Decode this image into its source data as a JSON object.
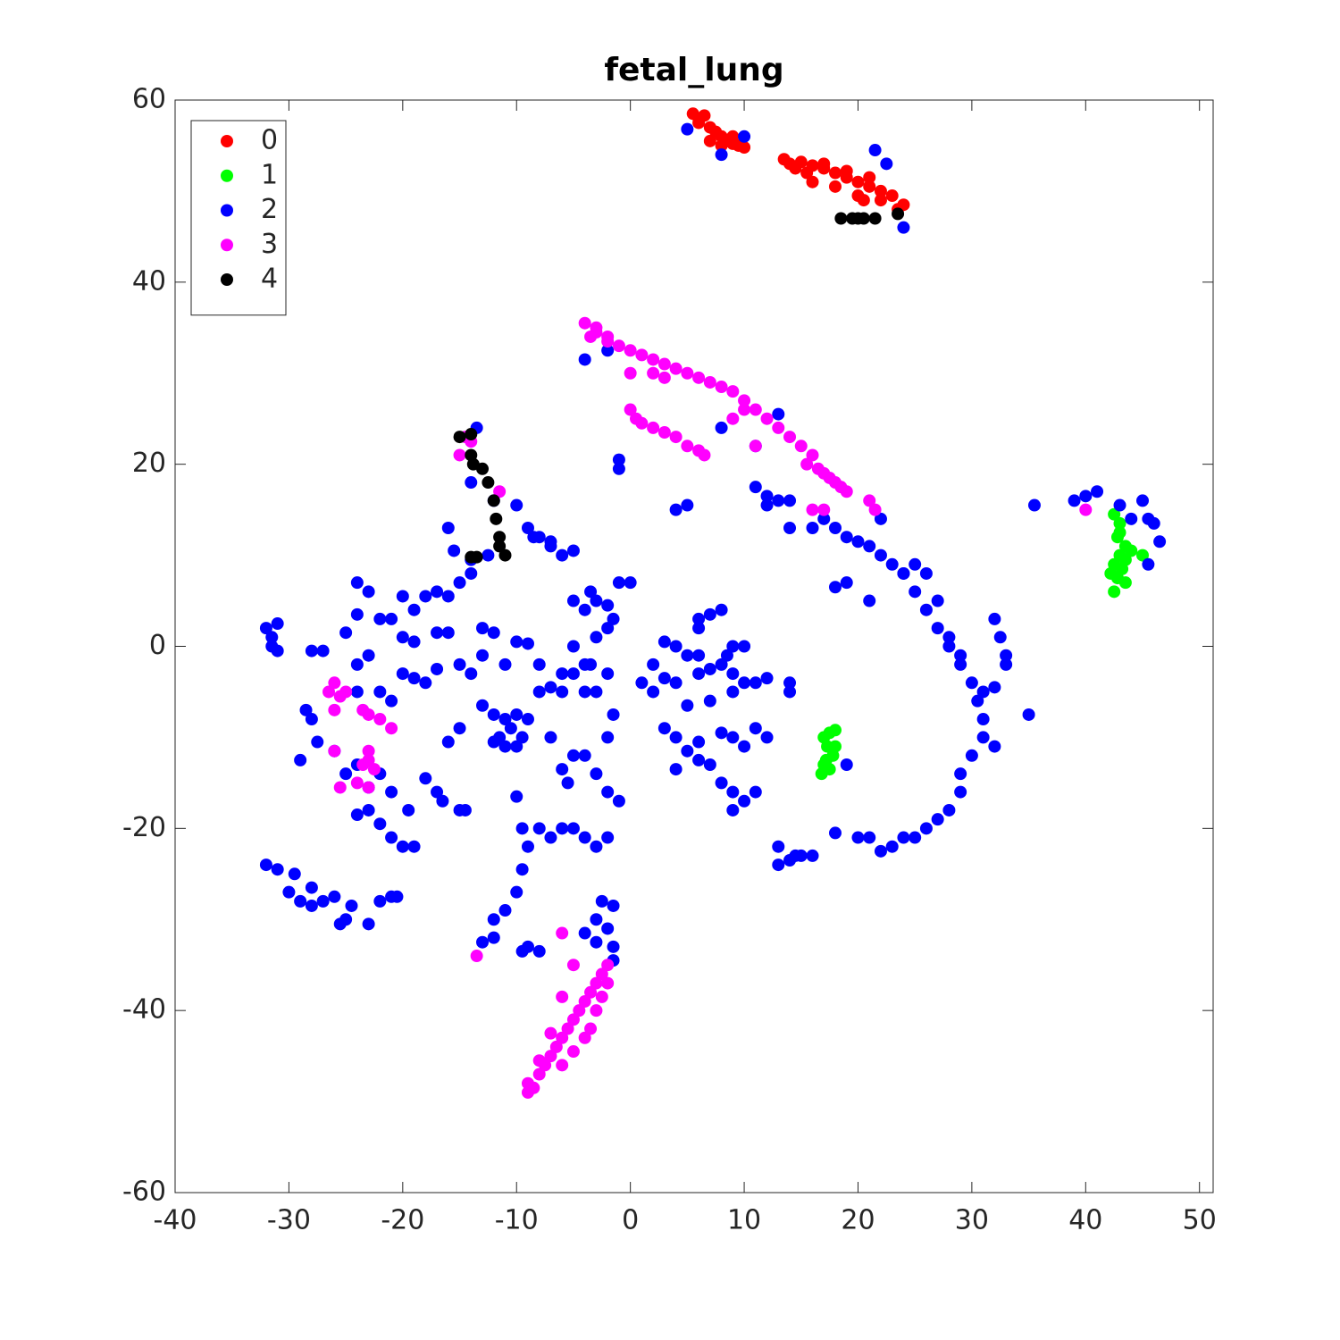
{
  "chart_data": {
    "type": "scatter",
    "title": "fetal_lung",
    "xlim": [
      -40,
      51.2
    ],
    "xticks": [
      -40,
      -30,
      -20,
      -10,
      0,
      10,
      20,
      30,
      40,
      50
    ],
    "ylim": [
      -60,
      60
    ],
    "yticks": [
      -60,
      -40,
      -20,
      0,
      20,
      40,
      60
    ],
    "grid": false,
    "legend": "upper left",
    "series": [
      {
        "name": "0",
        "color": "#ff0000",
        "x": [
          5.5,
          6,
          6.5,
          7,
          7.5,
          8,
          8.5,
          9,
          9.5,
          10,
          7,
          8,
          13.5,
          14,
          15,
          16,
          17,
          18,
          19,
          20,
          21,
          22,
          23,
          24,
          14.5,
          16,
          18,
          20,
          22,
          23.5,
          17,
          19,
          21,
          15.5,
          20.5,
          6,
          9
        ],
        "values": [
          58.5,
          58,
          58.3,
          57,
          56.5,
          56,
          55.5,
          56,
          55,
          54.8,
          55.5,
          55,
          53.5,
          53,
          53.2,
          52.8,
          52.5,
          52,
          51.5,
          51,
          50.5,
          50,
          49.5,
          48.5,
          52.5,
          51,
          50.5,
          49.5,
          49,
          48,
          53,
          52.2,
          51.5,
          52,
          49,
          57.5,
          55.2
        ]
      },
      {
        "name": "1",
        "color": "#00ff00",
        "x": [
          42.5,
          43,
          42.8,
          43.5,
          43,
          42.5,
          43.2,
          42.8,
          42.5,
          43.5,
          44,
          45,
          42.2,
          43,
          43.5,
          17,
          17.5,
          18,
          17.3,
          17.8,
          17,
          16.8,
          17.5,
          18,
          17.2
        ],
        "values": [
          14.5,
          13.5,
          12,
          11,
          10,
          9,
          8.5,
          7.5,
          6,
          9.5,
          10.5,
          10,
          8,
          12.5,
          7,
          -10,
          -9.5,
          -9.2,
          -11,
          -12,
          -13,
          -14,
          -13.5,
          -11,
          -12.5
        ]
      },
      {
        "name": "2",
        "color": "#0000ff",
        "x": [
          5,
          8,
          10,
          21.5,
          22.5,
          24,
          -32,
          -31.5,
          -31,
          -31.5,
          -28,
          -27,
          -24,
          -23,
          -24,
          -22,
          -21,
          -20,
          -19,
          -18,
          -17,
          -16,
          -15,
          -14,
          -15.5,
          -14,
          -13.5,
          -14,
          -12,
          -10,
          -9,
          -8,
          -7,
          -6,
          -5,
          -8.5,
          -7,
          -20,
          -19,
          -17,
          -16,
          -13,
          -12,
          -10,
          -9,
          -25,
          -23,
          -24,
          -24,
          -22,
          -20,
          -19,
          -18,
          -17,
          -15,
          -14,
          -13,
          -11,
          -28.5,
          -28,
          -27.5,
          -29,
          -26,
          -25,
          -24,
          -22,
          -23,
          -21,
          -24,
          -23,
          -22,
          -21,
          -20,
          -19,
          -18,
          -17,
          -16.5,
          -15,
          -14.5,
          -19.5,
          -21,
          -16,
          -15,
          -13,
          -12,
          -11,
          -10,
          -10.5,
          -11.5,
          -12,
          -9.5,
          -10,
          -11,
          -9,
          -8,
          -7,
          -6,
          -5,
          -4,
          -3.5,
          -4,
          -3,
          -2,
          -1.5,
          -4,
          -3,
          -2,
          -5,
          -3.5,
          -2,
          -1.5,
          -3,
          -5,
          -1,
          0,
          -32,
          -31,
          -29.5,
          -30,
          -29,
          -28,
          -28,
          -27,
          -26,
          -25.5,
          -25,
          -24.5,
          -23,
          -22,
          -21,
          -20.5,
          -8,
          -6,
          -7,
          -5,
          -6,
          -5.5,
          -4,
          -3,
          -2,
          -1,
          -2,
          -10,
          -9.5,
          -9,
          -8,
          -7,
          -6,
          -5,
          -4,
          -3,
          -2,
          -9.5,
          -10,
          -11,
          -12,
          -13,
          -12,
          -9.5,
          -9,
          -8,
          -4,
          -3,
          -2.5,
          -1.5,
          -2,
          -1.5,
          -1.5,
          -3,
          1,
          2,
          3,
          4,
          2,
          3,
          4,
          5,
          6,
          6,
          7,
          8,
          9,
          10,
          6,
          6,
          7,
          8,
          9,
          10,
          8.5,
          5,
          7,
          9,
          11,
          12,
          3,
          4,
          5,
          6,
          4,
          6,
          7,
          8,
          9,
          11,
          10,
          12,
          8,
          9,
          9,
          10,
          11,
          14,
          14,
          14.5,
          14,
          15,
          16,
          13,
          13,
          14,
          13,
          14,
          11,
          12,
          12,
          13,
          16,
          17,
          18,
          19,
          20,
          21,
          22,
          23,
          24,
          25,
          26,
          27,
          28,
          29,
          30,
          30.5,
          31,
          31,
          30,
          29,
          29,
          28,
          27,
          26,
          25,
          24,
          23,
          22,
          20,
          18,
          19,
          18,
          19,
          21,
          24,
          25,
          26,
          27,
          28,
          29,
          31,
          32,
          32,
          33,
          33,
          32.5,
          32,
          35,
          35.5,
          39,
          40,
          41,
          43,
          44,
          45,
          45.5,
          46,
          46.5,
          45.5,
          -31,
          21,
          22,
          -1,
          -1,
          4,
          5,
          -4,
          -2,
          8,
          11,
          -16,
          -12.5
        ],
        "values": [
          56.8,
          54,
          56,
          54.5,
          53,
          46,
          2,
          1,
          2.5,
          0,
          -0.5,
          -0.5,
          7,
          6,
          3.5,
          3,
          3,
          5.5,
          4,
          5.5,
          6,
          5.5,
          7,
          8,
          10.5,
          9.5,
          24,
          18,
          16,
          15.5,
          13,
          12,
          11.5,
          10,
          10.5,
          12,
          11,
          1,
          0.5,
          1.5,
          1.5,
          2,
          1.5,
          0.5,
          0.3,
          1.5,
          -1,
          -2,
          -5,
          -5,
          -3,
          -3.5,
          -4,
          -2.5,
          -2,
          -3,
          -1,
          -2,
          -7,
          -8,
          -10.5,
          -12.5,
          -11.5,
          -14,
          -13,
          -14,
          -15.5,
          -16,
          -18.5,
          -18,
          -19.5,
          -21,
          -22,
          -22,
          -14.5,
          -16,
          -17,
          -18,
          -18,
          -18,
          -6,
          -10.5,
          -9,
          -6.5,
          -7.5,
          -8,
          -7.5,
          -9,
          -10,
          -10.5,
          -10,
          -11,
          -11,
          -8,
          -5,
          -4.5,
          -3,
          -3,
          -2,
          -2,
          -5,
          -5,
          -3,
          -7.5,
          4,
          5,
          4.5,
          5,
          6,
          2,
          3,
          1,
          0,
          7,
          7,
          -24,
          -24.5,
          -25,
          -27,
          -28,
          -28.5,
          -26.5,
          -28,
          -27.5,
          -30.5,
          -30,
          -28.5,
          -30.5,
          -28,
          -27.5,
          -27.5,
          -2,
          -5,
          -10,
          -12,
          -13.5,
          -15,
          -12,
          -14,
          -16,
          -17,
          -10,
          -16.5,
          -20,
          -22,
          -20,
          -21,
          -20,
          -20,
          -21,
          -22,
          -21,
          -24.5,
          -27,
          -29,
          -30,
          -32.5,
          -32,
          -33.5,
          -33,
          -33.5,
          -31.5,
          -30,
          -28,
          -28.5,
          -31,
          -33,
          -34.5,
          -32.5,
          -4,
          -2,
          -3.5,
          -4,
          -5,
          0.5,
          0,
          -1,
          -1,
          -3,
          -2.5,
          -2,
          -3,
          -4,
          2,
          3,
          3.5,
          4,
          0,
          0,
          -1,
          -6.5,
          -6,
          -5,
          -4,
          -3.5,
          -9,
          -10,
          -11.5,
          -10.5,
          -13.5,
          -12.5,
          -13,
          -9.5,
          -10,
          -9,
          -11,
          -10,
          -15,
          -16,
          -18,
          -17,
          -16,
          -4,
          -5,
          -23,
          -23.5,
          -23,
          -23,
          -22,
          -24,
          13,
          16,
          16,
          17.5,
          16.5,
          15.5,
          25.5,
          13,
          14,
          13,
          12,
          11.5,
          11,
          10,
          9,
          8,
          6,
          4,
          2,
          0,
          -2,
          -4,
          -6,
          -8,
          -10,
          -12,
          -14,
          -16,
          -18,
          -19,
          -20,
          -21,
          -21,
          -22,
          -22.5,
          -21,
          -20.5,
          -13,
          6.5,
          7,
          5,
          8,
          9,
          8,
          5,
          1,
          -1,
          -5,
          -4.5,
          -11,
          -2,
          -1,
          1,
          3,
          -7.5,
          15.5,
          16,
          16.5,
          17,
          15.5,
          14,
          16,
          14,
          13.5,
          11.5,
          9,
          -0.5,
          -21,
          14,
          19.5,
          20.5,
          15,
          15.5,
          31.5,
          32.5,
          24,
          22,
          13,
          10
        ]
      },
      {
        "name": "3",
        "color": "#ff00ff",
        "x": [
          -4,
          -3,
          -3.5,
          -2,
          -1,
          0,
          1,
          2,
          3,
          4,
          5,
          6,
          7,
          8,
          9,
          10,
          11,
          12,
          13,
          14,
          15,
          16,
          17,
          18,
          19,
          15.5,
          16.5,
          17.5,
          18.5,
          9,
          10,
          2,
          3,
          0,
          11,
          16,
          17,
          21,
          21.5,
          -2,
          -3,
          0,
          0.5,
          1,
          2,
          3,
          4,
          5,
          6,
          6.5,
          -9,
          -8.5,
          -9,
          -8,
          -7.5,
          -7,
          -6.5,
          -6,
          -5.5,
          -5,
          -4.5,
          -4,
          -3.5,
          -3,
          -2.5,
          -2,
          -8,
          -7,
          -6,
          -5,
          -4,
          -3.5,
          -3,
          -2.5,
          -2,
          -6,
          -5,
          -6,
          -13.5,
          -26,
          -26.5,
          -25.5,
          -25,
          -26,
          -23.5,
          -23,
          -22,
          -21,
          -23,
          -23,
          -22.5,
          -23.5,
          -26,
          -25.5,
          -24,
          -23,
          40,
          -15,
          -14.5,
          -11.5,
          -14
        ],
        "values": [
          35.5,
          35,
          34,
          33.5,
          33,
          32.5,
          32,
          31.5,
          31,
          30.5,
          30,
          29.5,
          29,
          28.5,
          28,
          27,
          26,
          25,
          24,
          23,
          22,
          21,
          19,
          18,
          17,
          20,
          19.5,
          18.5,
          17.5,
          25,
          26,
          30,
          29.5,
          30,
          22,
          15,
          15,
          16,
          15,
          34,
          34.5,
          26,
          25,
          24.5,
          24,
          23.5,
          23,
          22,
          21.5,
          21,
          -49,
          -48.5,
          -48,
          -47,
          -46,
          -45,
          -44,
          -43,
          -42,
          -41,
          -40,
          -39,
          -38,
          -37,
          -36,
          -35,
          -45.5,
          -42.5,
          -46,
          -44.5,
          -43,
          -42,
          -40,
          -38.5,
          -37,
          -38.5,
          -35,
          -31.5,
          -34,
          -4,
          -5,
          -5.5,
          -5,
          -7,
          -7,
          -7.5,
          -8,
          -9,
          -11.5,
          -12.5,
          -13.5,
          -13,
          -11.5,
          -15.5,
          -15,
          -15.5,
          15,
          21,
          23,
          17,
          22.5
        ]
      },
      {
        "name": "4",
        "color": "#000000",
        "x": [
          -15,
          -14,
          -14,
          -13.8,
          -13,
          -12.5,
          -12,
          -11.8,
          -11.5,
          -11.5,
          -11,
          -13.5,
          -14,
          18.5,
          19.5,
          20,
          20.5,
          21.5,
          23.5
        ],
        "values": [
          23,
          23.3,
          21,
          20,
          19.5,
          18,
          16,
          14,
          12,
          11,
          10,
          9.8,
          9.8,
          47,
          47,
          47,
          47,
          47,
          47.5
        ]
      }
    ]
  }
}
